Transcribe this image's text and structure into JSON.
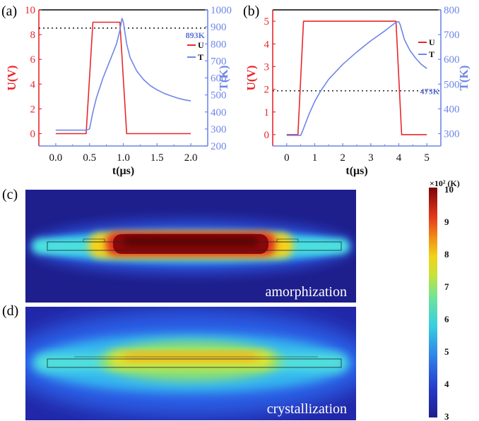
{
  "figure": {
    "panels": {
      "a": {
        "label": "(a)"
      },
      "b": {
        "label": "(b)"
      },
      "c": {
        "label": "(c)",
        "caption": "amorphization"
      },
      "d": {
        "label": "(d)",
        "caption": "crystallization"
      }
    },
    "colorbar": {
      "title": "×10² (K)",
      "min": 3,
      "max": 10,
      "ticks": [
        "3",
        "4",
        "5",
        "6",
        "7",
        "8",
        "9",
        "10"
      ],
      "colormap": "jet"
    },
    "colors": {
      "voltage": "#e8272b",
      "temperature": "#6f86e8",
      "threshold_line": "#222222",
      "heatmap_background": "#1e1e8c"
    }
  },
  "chart_data": [
    {
      "id": "a",
      "type": "line",
      "title": "",
      "xlabel": "t(μs)",
      "ylabel_left": "U(V)",
      "ylabel_right": "T(K)",
      "xlim": [
        -0.25,
        2.25
      ],
      "ylim_left": [
        -1,
        10
      ],
      "ylim_right": [
        200,
        1000
      ],
      "xticks": [
        "0.0",
        "0.5",
        "1.0",
        "1.5",
        "2.0"
      ],
      "xtick_values": [
        0,
        0.5,
        1.0,
        1.5,
        2.0
      ],
      "yticks_left": [
        "0",
        "2",
        "4",
        "6",
        "8",
        "10"
      ],
      "ytick_left_values": [
        0,
        2,
        4,
        6,
        8,
        10
      ],
      "yticks_right": [
        "200",
        "300",
        "400",
        "500",
        "600",
        "700",
        "800",
        "900",
        "1000"
      ],
      "ytick_right_values": [
        200,
        300,
        400,
        500,
        600,
        700,
        800,
        900,
        1000
      ],
      "legend": [
        "U",
        "T"
      ],
      "legend_position": "right",
      "grid": false,
      "threshold": {
        "value": 893,
        "axis": "right",
        "label": "893K",
        "style": "dotted"
      },
      "series": [
        {
          "name": "U",
          "axis": "left",
          "x": [
            0,
            0.45,
            0.55,
            0.95,
            1.05,
            2.0
          ],
          "y": [
            0,
            0,
            9,
            9,
            0,
            0
          ]
        },
        {
          "name": "T",
          "axis": "right",
          "x": [
            0,
            0.45,
            0.5,
            0.55,
            0.6,
            0.7,
            0.8,
            0.9,
            0.95,
            0.98,
            1.0,
            1.05,
            1.1,
            1.2,
            1.3,
            1.4,
            1.5,
            1.6,
            1.7,
            1.8,
            1.9,
            2.0
          ],
          "y": [
            293,
            293,
            300,
            400,
            480,
            600,
            700,
            800,
            880,
            950,
            930,
            800,
            720,
            640,
            590,
            555,
            530,
            510,
            495,
            482,
            472,
            465
          ]
        }
      ]
    },
    {
      "id": "b",
      "type": "line",
      "title": "",
      "xlabel": "t(μs)",
      "ylabel_left": "U(V)",
      "ylabel_right": "T(K)",
      "xlim": [
        -0.5,
        5.5
      ],
      "ylim_left": [
        -0.5,
        5.5
      ],
      "ylim_right": [
        250,
        800
      ],
      "xticks": [
        "0",
        "1",
        "2",
        "3",
        "4",
        "5"
      ],
      "xtick_values": [
        0,
        1,
        2,
        3,
        4,
        5
      ],
      "yticks_left": [
        "0",
        "1",
        "2",
        "3",
        "4",
        "5"
      ],
      "ytick_left_values": [
        0,
        1,
        2,
        3,
        4,
        5
      ],
      "yticks_right": [
        "300",
        "400",
        "500",
        "600",
        "700",
        "800"
      ],
      "ytick_right_values": [
        300,
        400,
        500,
        600,
        700,
        800
      ],
      "legend": [
        "U",
        "T"
      ],
      "legend_position": "right",
      "grid": false,
      "threshold": {
        "value": 473,
        "axis": "right",
        "label": "473K",
        "style": "dotted"
      },
      "series": [
        {
          "name": "U",
          "axis": "left",
          "x": [
            0,
            0.4,
            0.6,
            3.9,
            4.1,
            5.0
          ],
          "y": [
            0,
            0,
            5,
            5,
            0,
            0
          ]
        },
        {
          "name": "T",
          "axis": "right",
          "x": [
            0,
            0.5,
            0.6,
            0.8,
            1.0,
            1.2,
            1.5,
            2.0,
            2.5,
            3.0,
            3.5,
            3.9,
            4.0,
            4.05,
            4.2,
            4.4,
            4.6,
            4.8,
            5.0
          ],
          "y": [
            293,
            293,
            320,
            380,
            430,
            470,
            520,
            580,
            630,
            675,
            715,
            750,
            752,
            740,
            680,
            635,
            605,
            580,
            563
          ]
        }
      ]
    }
  ]
}
